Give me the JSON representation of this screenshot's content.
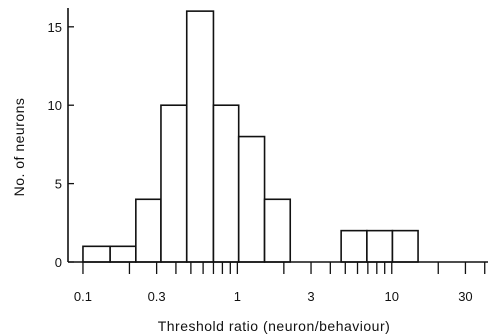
{
  "chart_data": {
    "type": "bar",
    "xlabel": "Threshold ratio (neuron/behaviour)",
    "ylabel": "No. of neurons",
    "x_scale": "log",
    "xlim": [
      0.08,
      42
    ],
    "ylim": [
      0,
      16.2
    ],
    "y_ticks": [
      0,
      5,
      10,
      15
    ],
    "x_tick_labels": [
      {
        "value": 0.1,
        "label": "0.1"
      },
      {
        "value": 0.3,
        "label": "0.3"
      },
      {
        "value": 1,
        "label": "1"
      },
      {
        "value": 3,
        "label": "3"
      },
      {
        "value": 10,
        "label": "10"
      },
      {
        "value": 30,
        "label": "30"
      }
    ],
    "x_minor_ticks": [
      0.1,
      0.2,
      0.3,
      0.4,
      0.5,
      0.6,
      0.7,
      0.8,
      0.9,
      1,
      2,
      3,
      4,
      5,
      6,
      7,
      8,
      9,
      10,
      20,
      30,
      40
    ],
    "bins": [
      {
        "x0": 0.1,
        "x1": 0.15,
        "count": 1
      },
      {
        "x0": 0.15,
        "x1": 0.22,
        "count": 1
      },
      {
        "x0": 0.22,
        "x1": 0.32,
        "count": 4
      },
      {
        "x0": 0.32,
        "x1": 0.47,
        "count": 10
      },
      {
        "x0": 0.47,
        "x1": 0.7,
        "count": 16
      },
      {
        "x0": 0.7,
        "x1": 1.02,
        "count": 10
      },
      {
        "x0": 1.02,
        "x1": 1.5,
        "count": 8
      },
      {
        "x0": 1.5,
        "x1": 2.2,
        "count": 4
      },
      {
        "x0": 4.7,
        "x1": 6.9,
        "count": 2
      },
      {
        "x0": 6.9,
        "x1": 10.1,
        "count": 2
      },
      {
        "x0": 10.1,
        "x1": 14.8,
        "count": 2
      }
    ]
  }
}
